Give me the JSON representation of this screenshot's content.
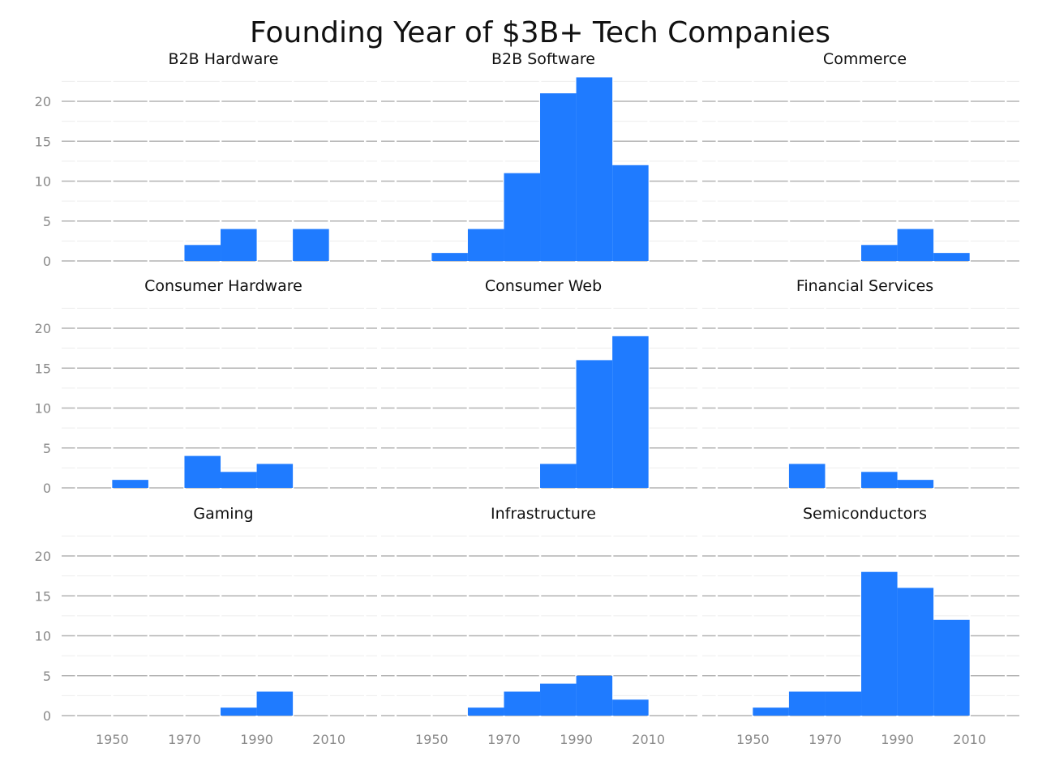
{
  "chart_data": {
    "type": "bar",
    "title": "Founding Year of $3B+ Tech Companies",
    "bin_width": 10,
    "xlim": [
      1936,
      2024
    ],
    "ylim": [
      0,
      23
    ],
    "x_ticks": [
      1950,
      1970,
      1990,
      2010
    ],
    "y_ticks": [
      0,
      5,
      10,
      15,
      20
    ],
    "grid": true,
    "bar_color": "#1f7bff",
    "grid_color": "#b3b3b3",
    "minor_grid_color": "#ededed",
    "panels": [
      {
        "name": "B2B Hardware",
        "bins": [
          {
            "start": 1970,
            "value": 2
          },
          {
            "start": 1980,
            "value": 4
          },
          {
            "start": 2000,
            "value": 4
          }
        ]
      },
      {
        "name": "B2B Software",
        "bins": [
          {
            "start": 1950,
            "value": 1
          },
          {
            "start": 1960,
            "value": 4
          },
          {
            "start": 1970,
            "value": 11
          },
          {
            "start": 1980,
            "value": 21
          },
          {
            "start": 1990,
            "value": 23
          },
          {
            "start": 2000,
            "value": 12
          }
        ]
      },
      {
        "name": "Commerce",
        "bins": [
          {
            "start": 1980,
            "value": 2
          },
          {
            "start": 1990,
            "value": 4
          },
          {
            "start": 2000,
            "value": 1
          }
        ]
      },
      {
        "name": "Consumer Hardware",
        "bins": [
          {
            "start": 1950,
            "value": 1
          },
          {
            "start": 1970,
            "value": 4
          },
          {
            "start": 1980,
            "value": 2
          },
          {
            "start": 1990,
            "value": 3
          }
        ]
      },
      {
        "name": "Consumer Web",
        "bins": [
          {
            "start": 1980,
            "value": 3
          },
          {
            "start": 1990,
            "value": 16
          },
          {
            "start": 2000,
            "value": 19
          }
        ]
      },
      {
        "name": "Financial Services",
        "bins": [
          {
            "start": 1960,
            "value": 3
          },
          {
            "start": 1980,
            "value": 2
          },
          {
            "start": 1990,
            "value": 1
          }
        ]
      },
      {
        "name": "Gaming",
        "bins": [
          {
            "start": 1980,
            "value": 1
          },
          {
            "start": 1990,
            "value": 3
          }
        ]
      },
      {
        "name": "Infrastructure",
        "bins": [
          {
            "start": 1960,
            "value": 1
          },
          {
            "start": 1970,
            "value": 3
          },
          {
            "start": 1980,
            "value": 4
          },
          {
            "start": 1990,
            "value": 5
          },
          {
            "start": 2000,
            "value": 2
          }
        ]
      },
      {
        "name": "Semiconductors",
        "bins": [
          {
            "start": 1950,
            "value": 1
          },
          {
            "start": 1960,
            "value": 3
          },
          {
            "start": 1970,
            "value": 3
          },
          {
            "start": 1980,
            "value": 18
          },
          {
            "start": 1990,
            "value": 16
          },
          {
            "start": 2000,
            "value": 12
          }
        ]
      }
    ]
  }
}
